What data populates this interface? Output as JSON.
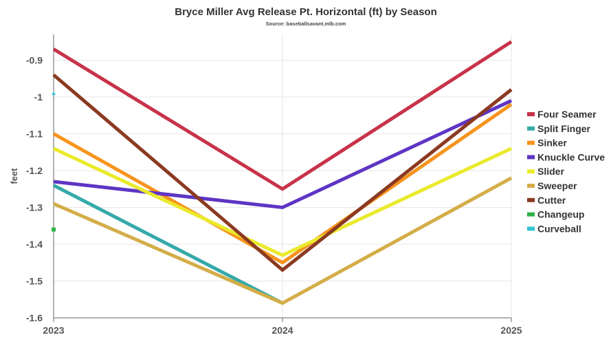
{
  "chart_data": {
    "type": "line",
    "title": "Bryce Miller Avg Release Pt. Horizontal (ft) by Season",
    "subtitle": "Source: baseballsavant.mlb.com",
    "xlabel": "",
    "ylabel": "feet",
    "x": [
      "2023",
      "2024",
      "2025"
    ],
    "xlim": [
      2023,
      2025
    ],
    "ylim": [
      -1.6,
      -0.83
    ],
    "yticks": [
      -0.9,
      -1,
      -1.1,
      -1.2,
      -1.3,
      -1.4,
      -1.5,
      -1.6
    ],
    "ytick_labels": [
      "-0.9",
      "-1",
      "-1.1",
      "-1.2",
      "-1.3",
      "-1.4",
      "-1.5",
      "-1.6"
    ],
    "grid": true,
    "legend_position": "right",
    "series": [
      {
        "name": "Four Seamer",
        "color": "#c8334a",
        "values": [
          -0.87,
          -1.25,
          -0.85
        ]
      },
      {
        "name": "Split Finger",
        "color": "#36a9a9",
        "values": [
          -1.24,
          -1.56,
          null
        ]
      },
      {
        "name": "Sinker",
        "color": "#f7941d",
        "values": [
          -1.1,
          -1.45,
          -1.02
        ]
      },
      {
        "name": "Knuckle Curve",
        "color": "#5e35c4",
        "values": [
          -1.23,
          -1.3,
          -1.01
        ]
      },
      {
        "name": "Slider",
        "color": "#eaea2c",
        "values": [
          -1.14,
          -1.43,
          -1.14
        ]
      },
      {
        "name": "Sweeper",
        "color": "#d4ad48",
        "values": [
          -1.29,
          -1.56,
          -1.22
        ]
      },
      {
        "name": "Cutter",
        "color": "#8b3a22",
        "values": [
          -0.94,
          -1.47,
          -0.98
        ]
      },
      {
        "name": "Changeup",
        "color": "#2fb24a",
        "values": [
          -1.36,
          null,
          null
        ]
      },
      {
        "name": "Curveball",
        "color": "#33c6d6",
        "values": [
          -0.99,
          null,
          null
        ]
      }
    ]
  }
}
